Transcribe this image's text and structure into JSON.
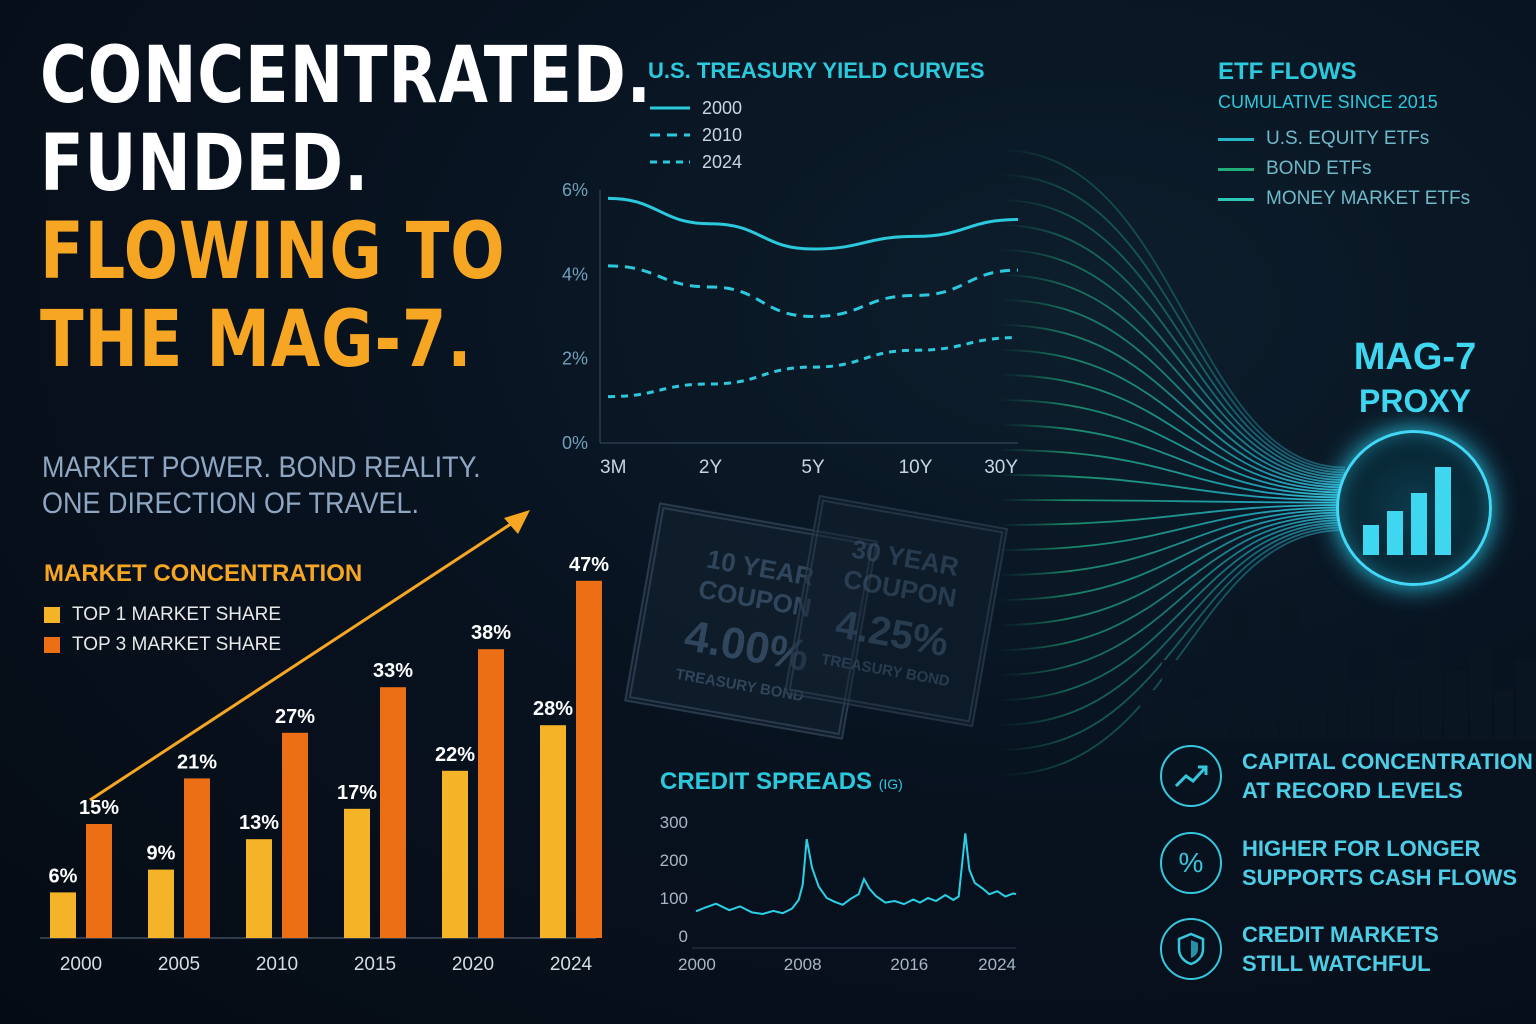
{
  "headline": {
    "line1": "CONCENTRATED.",
    "line2": "FUNDED.",
    "line3": "FLOWING TO",
    "line4": "THE MAG-7."
  },
  "subtitle": {
    "line1": "MARKET POWER. BOND REALITY.",
    "line2": "ONE DIRECTION OF TRAVEL."
  },
  "colors": {
    "top1": "#f5b427",
    "top3": "#ec6f16",
    "teal": "#2cc8dc",
    "gold_text": "#f6a623",
    "etf_equity": "#26b8c8",
    "etf_bond": "#1fae78",
    "etf_mm": "#2dc8b8"
  },
  "market_concentration": {
    "title": "MARKET CONCENTRATION",
    "legend_top1": "TOP 1 MARKET SHARE",
    "legend_top3": "TOP 3 MARKET SHARE"
  },
  "yield_curves": {
    "title": "U.S. TREASURY YIELD CURVES",
    "legend": [
      "2000",
      "2010",
      "2024"
    ]
  },
  "etf_flows": {
    "title": "ETF FLOWS",
    "subtitle": "CUMULATIVE SINCE 2015",
    "legend": [
      "U.S. EQUITY ETFs",
      "BOND ETFs",
      "MONEY MARKET ETFs"
    ]
  },
  "mag7": {
    "line1": "MAG-7",
    "line2": "PROXY",
    "icon": "bar-chart-icon"
  },
  "coupons": [
    {
      "line1": "10 YEAR",
      "line2": "COUPON",
      "rate": "4.00%",
      "label": "TREASURY BOND"
    },
    {
      "line1": "30 YEAR",
      "line2": "COUPON",
      "rate": "4.25%",
      "label": "TREASURY BOND"
    }
  ],
  "credit_spreads": {
    "title": "CREDIT SPREADS",
    "title_suffix": "(IG)"
  },
  "bullets": [
    {
      "icon": "trend-up-icon",
      "text": "CAPITAL CONCENTRATION\nAT RECORD LEVELS"
    },
    {
      "icon": "percent-icon",
      "text": "HIGHER FOR LONGER\nSUPPORTS CASH FLOWS"
    },
    {
      "icon": "shield-icon",
      "text": "CREDIT MARKETS\nSTILL WATCHFUL"
    }
  ],
  "chart_data": [
    {
      "type": "bar",
      "title": "MARKET CONCENTRATION",
      "categories": [
        "2000",
        "2005",
        "2010",
        "2015",
        "2020",
        "2024"
      ],
      "series": [
        {
          "name": "TOP 1 MARKET SHARE",
          "values": [
            6,
            9,
            13,
            17,
            22,
            28
          ],
          "labels": [
            "6%",
            "9%",
            "13%",
            "17%",
            "22%",
            "28%"
          ]
        },
        {
          "name": "TOP 3 MARKET SHARE",
          "values": [
            15,
            21,
            27,
            33,
            38,
            47
          ],
          "labels": [
            "15%",
            "21%",
            "27%",
            "33%",
            "38%",
            "47%"
          ]
        }
      ],
      "ylim": [
        0,
        50
      ],
      "grid": false
    },
    {
      "type": "line",
      "title": "U.S. TREASURY YIELD CURVES",
      "x": [
        "3M",
        "2Y",
        "5Y",
        "10Y",
        "30Y"
      ],
      "series": [
        {
          "name": "2000",
          "values": [
            5.8,
            5.2,
            4.6,
            4.9,
            5.3
          ]
        },
        {
          "name": "2010",
          "values": [
            4.2,
            3.7,
            3.0,
            3.5,
            4.1
          ]
        },
        {
          "name": "2024",
          "values": [
            1.1,
            1.4,
            1.8,
            2.2,
            2.5
          ]
        }
      ],
      "y_ticks": [
        "0%",
        "2%",
        "4%",
        "6%"
      ],
      "ylim": [
        0,
        6
      ],
      "grid": false
    },
    {
      "type": "line",
      "title": "CREDIT SPREADS (IG)",
      "x_ticks": [
        "2000",
        "2008",
        "2016",
        "2024"
      ],
      "y_ticks": [
        "0",
        "100",
        "200",
        "300"
      ],
      "xlim": [
        2000,
        2024
      ],
      "ylim": [
        0,
        300
      ],
      "series": [
        {
          "name": "IG",
          "x": [
            2000,
            2000.7,
            2001.5,
            2002.5,
            2003.3,
            2004.2,
            2005,
            2005.8,
            2006.5,
            2007.2,
            2007.7,
            2008.0,
            2008.3,
            2008.7,
            2009.2,
            2009.8,
            2010.4,
            2011,
            2011.6,
            2012.2,
            2012.6,
            2013,
            2013.5,
            2014.2,
            2014.9,
            2015.6,
            2016.3,
            2016.8,
            2017.4,
            2018,
            2018.7,
            2019.3,
            2019.7,
            2020.2,
            2020.5,
            2020.9,
            2021.5,
            2022,
            2022.6,
            2023.2,
            2023.8,
            2024
          ],
          "y": [
            65,
            75,
            85,
            68,
            78,
            62,
            58,
            66,
            60,
            72,
            95,
            135,
            255,
            180,
            130,
            100,
            90,
            82,
            98,
            110,
            150,
            125,
            105,
            88,
            92,
            84,
            96,
            88,
            100,
            92,
            108,
            95,
            104,
            270,
            175,
            140,
            125,
            110,
            118,
            104,
            112,
            110
          ]
        }
      ],
      "grid": false
    }
  ]
}
